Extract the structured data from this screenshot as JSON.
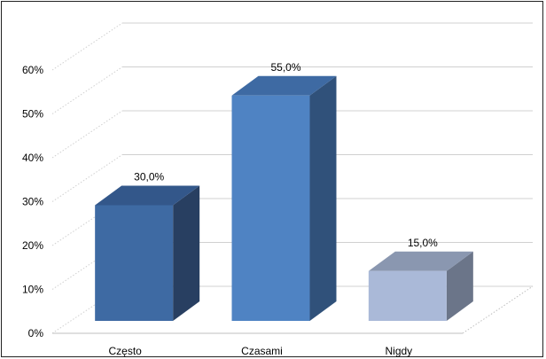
{
  "chart_data": {
    "type": "bar",
    "style": "3d-column",
    "categories": [
      "Często",
      "Czasami",
      "Nigdy"
    ],
    "values": [
      30.0,
      55.0,
      15.0
    ],
    "data_labels": [
      "30,0%",
      "55,0%",
      "15,0%"
    ],
    "y_ticks": [
      "0%",
      "10%",
      "20%",
      "30%",
      "40%",
      "50%",
      "60%"
    ],
    "ylim": [
      0,
      60
    ],
    "grid": true,
    "legend": "none",
    "colors": {
      "bars": [
        {
          "front": "#3e6aa3",
          "side": "#283f61",
          "top": "#33578a"
        },
        {
          "front": "#4f83c3",
          "side": "#30517a",
          "top": "#3e6aa3"
        },
        {
          "front": "#aab9d8",
          "side": "#6b7589",
          "top": "#8a97b0"
        }
      ],
      "grid": "#d0d0d0",
      "floor": "#bfbfbf"
    }
  }
}
